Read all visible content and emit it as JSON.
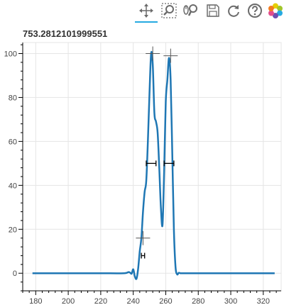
{
  "toolbar": {
    "tools": [
      {
        "name": "pan-tool",
        "icon": "pan-icon",
        "active": true
      },
      {
        "name": "box-zoom-tool",
        "icon": "box-zoom-icon",
        "active": false
      },
      {
        "name": "wheel-zoom-tool",
        "icon": "wheel-zoom-icon",
        "active": false
      },
      {
        "name": "save-tool",
        "icon": "save-icon",
        "active": false
      },
      {
        "name": "reset-tool",
        "icon": "reset-icon",
        "active": false
      },
      {
        "name": "help-tool",
        "icon": "help-icon",
        "active": false
      },
      {
        "name": "bokeh-logo",
        "icon": "bokeh-logo",
        "active": false
      }
    ],
    "active_color": "#26aae1"
  },
  "chart_data": {
    "type": "line",
    "title": "753.2812101999551",
    "xlim": [
      172,
      331
    ],
    "ylim": [
      -8,
      105
    ],
    "xticks": [
      180,
      200,
      220,
      240,
      260,
      280,
      300,
      320
    ],
    "yticks": [
      0,
      20,
      40,
      60,
      80,
      100
    ],
    "grid": true,
    "line_color": "#1f77b4",
    "series": [
      {
        "x": [
          178,
          200,
          220,
          234,
          237,
          238,
          239,
          240,
          241,
          242,
          243,
          244,
          245,
          246,
          247,
          248,
          249,
          250,
          251,
          252,
          253,
          254,
          255,
          256,
          257,
          258,
          259,
          260,
          261,
          262,
          263,
          264,
          265,
          266,
          267,
          268,
          269,
          270,
          280,
          300,
          320,
          327
        ],
        "y": [
          0,
          0,
          0,
          0,
          0.5,
          0.3,
          -0.2,
          1.8,
          -1.5,
          -2.5,
          2,
          10,
          16,
          28,
          37,
          42,
          60,
          82,
          100,
          95,
          73,
          69,
          64,
          48,
          30,
          22,
          46,
          78,
          88,
          98,
          88,
          55,
          20,
          3,
          -0.5,
          0.2,
          0,
          0,
          0,
          0,
          0,
          0
        ]
      }
    ],
    "markers": {
      "crosshairs": [
        {
          "x": 252,
          "y": 100
        },
        {
          "x": 263,
          "y": 99
        },
        {
          "x": 246,
          "y": 16
        }
      ],
      "intervals": [
        {
          "x0": 248,
          "x1": 254,
          "y": 50
        },
        {
          "x0": 259,
          "x1": 265,
          "y": 50
        },
        {
          "x0": 245,
          "x1": 247,
          "y": 8
        }
      ]
    }
  }
}
